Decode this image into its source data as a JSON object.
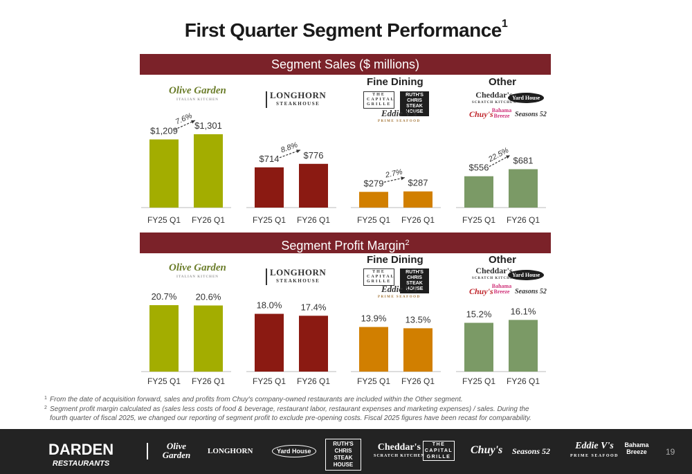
{
  "title": "First Quarter Segment Performance",
  "title_footnote": "1",
  "banners": {
    "sales": "Segment Sales ($ millions)",
    "margin": "Segment Profit Margin",
    "margin_footnote": "2"
  },
  "group_labels": {
    "fine_dining": "Fine Dining",
    "other": "Other"
  },
  "brands": {
    "olive_garden": "Olive Garden",
    "olive_garden_sub": "ITALIAN KITCHEN",
    "longhorn": "LONGHORN",
    "longhorn_sub": "STEAKHOUSE",
    "capital_grille": "THE CAPITAL GRILLE",
    "ruths_chris": "RUTH'S CHRIS STEAK HOUSE",
    "eddie_v": "Eddie V's",
    "eddie_v_sub": "PRIME SEAFOOD",
    "cheddars": "Cheddar's",
    "cheddars_sub": "SCRATCH KITCHEN",
    "yard_house": "Yard House",
    "chuys": "Chuy's",
    "bahama_breeze": "Bahama Breeze",
    "seasons52": "Seasons 52",
    "darden": "DARDEN",
    "darden_sub": "RESTAURANTS"
  },
  "chart_data": [
    {
      "type": "bar",
      "title": "Segment Sales ($ millions)",
      "panel": "Olive Garden",
      "categories": [
        "FY25 Q1",
        "FY26 Q1"
      ],
      "values": [
        1209,
        1301
      ],
      "value_labels": [
        "$1,209",
        "$1,301"
      ],
      "growth_label": "7.6%",
      "color": "#a3ad00"
    },
    {
      "type": "bar",
      "title": "Segment Sales ($ millions)",
      "panel": "LongHorn Steakhouse",
      "categories": [
        "FY25 Q1",
        "FY26 Q1"
      ],
      "values": [
        714,
        776
      ],
      "value_labels": [
        "$714",
        "$776"
      ],
      "growth_label": "8.8%",
      "color": "#8b1a12"
    },
    {
      "type": "bar",
      "title": "Segment Sales ($ millions)",
      "panel": "Fine Dining",
      "categories": [
        "FY25 Q1",
        "FY26 Q1"
      ],
      "values": [
        279,
        287
      ],
      "value_labels": [
        "$279",
        "$287"
      ],
      "growth_label": "2.7%",
      "color": "#d17f00"
    },
    {
      "type": "bar",
      "title": "Segment Sales ($ millions)",
      "panel": "Other",
      "categories": [
        "FY25 Q1",
        "FY26 Q1"
      ],
      "values": [
        556,
        681
      ],
      "value_labels": [
        "$556",
        "$681"
      ],
      "growth_label": "22.5%",
      "color": "#7b9a66"
    },
    {
      "type": "bar",
      "title": "Segment Profit Margin",
      "panel": "Olive Garden",
      "categories": [
        "FY25 Q1",
        "FY26 Q1"
      ],
      "values": [
        20.7,
        20.6
      ],
      "value_labels": [
        "20.7%",
        "20.6%"
      ],
      "color": "#a3ad00"
    },
    {
      "type": "bar",
      "title": "Segment Profit Margin",
      "panel": "LongHorn Steakhouse",
      "categories": [
        "FY25 Q1",
        "FY26 Q1"
      ],
      "values": [
        18.0,
        17.4
      ],
      "value_labels": [
        "18.0%",
        "17.4%"
      ],
      "color": "#8b1a12"
    },
    {
      "type": "bar",
      "title": "Segment Profit Margin",
      "panel": "Fine Dining",
      "categories": [
        "FY25 Q1",
        "FY26 Q1"
      ],
      "values": [
        13.9,
        13.5
      ],
      "value_labels": [
        "13.9%",
        "13.5%"
      ],
      "color": "#d17f00"
    },
    {
      "type": "bar",
      "title": "Segment Profit Margin",
      "panel": "Other",
      "categories": [
        "FY25 Q1",
        "FY26 Q1"
      ],
      "values": [
        15.2,
        16.1
      ],
      "value_labels": [
        "15.2%",
        "16.1%"
      ],
      "color": "#7b9a66"
    }
  ],
  "footnotes": [
    {
      "marker": "1",
      "text": "From the date of acquisition forward, sales and profits from Chuy's company-owned restaurants are included within the Other segment."
    },
    {
      "marker": "2",
      "text": "Segment profit margin calculated as (sales less costs of food & beverage, restaurant labor, restaurant expenses and marketing expenses) / sales. During the"
    },
    {
      "marker": "",
      "text": "fourth quarter of fiscal 2025, we changed our reporting of segment profit to exclude pre-opening costs.  Fiscal 2025 figures have been recast for comparability."
    }
  ],
  "page_number": "19"
}
